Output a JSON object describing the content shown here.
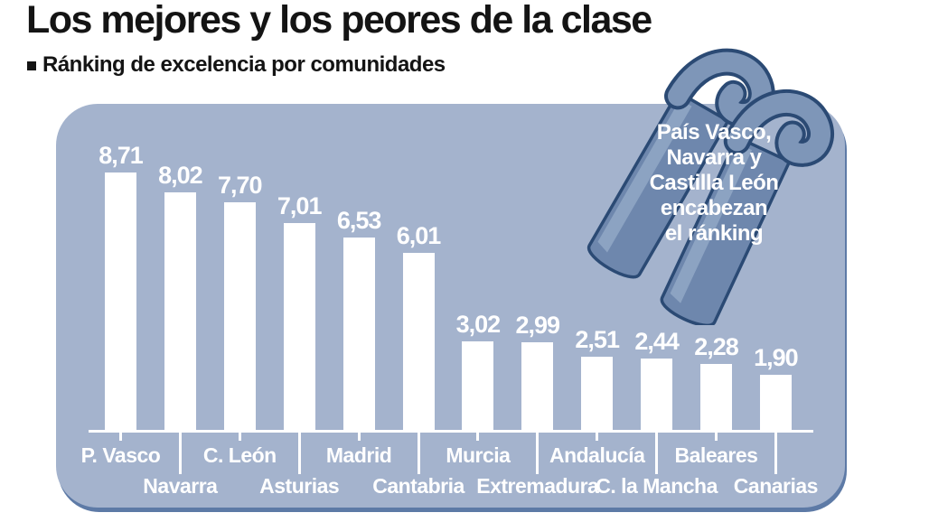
{
  "header": {
    "title": "Los mejores y los peores de la clase",
    "subtitle": "Ránking de excelencia por comunidades"
  },
  "chart_data": {
    "type": "bar",
    "title": "Los mejores y los peores de la clase",
    "subtitle": "Ránking de excelencia por comunidades",
    "categories": [
      "P. Vasco",
      "Navarra",
      "C. León",
      "Asturias",
      "Madrid",
      "Cantabria",
      "Murcia",
      "Extremadura",
      "Andalucía",
      "C. la Mancha",
      "Baleares",
      "Canarias"
    ],
    "values": [
      8.71,
      8.02,
      7.7,
      7.01,
      6.53,
      6.01,
      3.02,
      2.99,
      2.51,
      2.44,
      2.28,
      1.9
    ],
    "value_labels": [
      "8,71",
      "8,02",
      "7,70",
      "7,01",
      "6,53",
      "6,01",
      "3,02",
      "2,99",
      "2,51",
      "2,44",
      "2,28",
      "1,90"
    ],
    "xlabel": "",
    "ylabel": "",
    "ylim": [
      0,
      10
    ],
    "grid": false,
    "legend": false,
    "annotation": "País Vasco, Navarra y Castilla León encabezan el ránking"
  },
  "callout": {
    "lines": [
      "País Vasco,",
      "Navarra y",
      "Castilla León",
      "encabezan",
      "el ránking"
    ]
  },
  "colors": {
    "panel": "#a4b3cd",
    "bar": "#ffffff",
    "axis": "#ffffff",
    "text_dark": "#141414",
    "text_light": "#ffffff",
    "panel_shadow": "#5d7aa6",
    "book_fill": "#6e87ad",
    "book_fill_light": "#8ca3c2",
    "book_outline": "#2b4a74",
    "book_curl": "#7e96b8"
  }
}
